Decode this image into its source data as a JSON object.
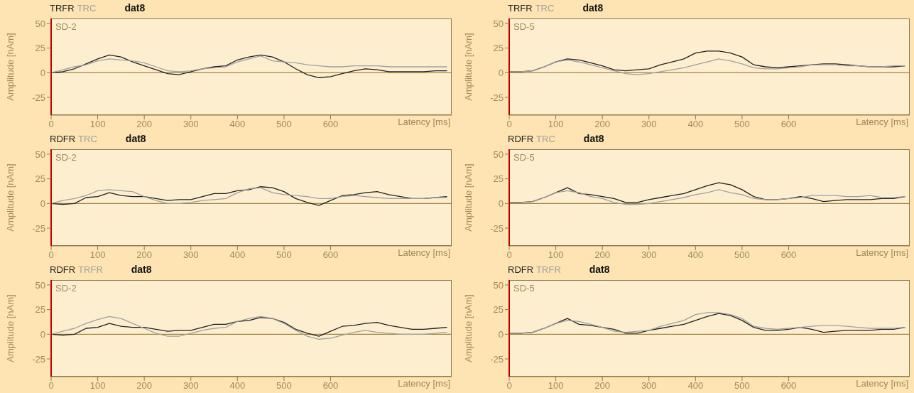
{
  "chart_data": [
    {
      "type": "line",
      "title": "dat8",
      "xlabel": "Latency [ms]",
      "ylabel": "Amplitude [nAm]",
      "annotations": [
        "SD-2"
      ],
      "legend": "top left",
      "xlim": [
        0,
        860
      ],
      "ylim": [
        -43,
        55
      ],
      "xticks": [
        0,
        100,
        200,
        300,
        400,
        500,
        600
      ],
      "yticks": [
        -25,
        0,
        25,
        50
      ],
      "ref_lines": [
        {
          "axis": "y",
          "value": 0,
          "color": "#8c6d1f"
        }
      ],
      "x": [
        0,
        25,
        50,
        75,
        100,
        125,
        150,
        175,
        200,
        225,
        250,
        275,
        300,
        325,
        350,
        375,
        400,
        425,
        450,
        475,
        500,
        525,
        550,
        575,
        600,
        625,
        650,
        675,
        700,
        725,
        750,
        775,
        800,
        825,
        850
      ],
      "series": [
        {
          "name": "TRFR",
          "color": "#202020",
          "values": [
            0,
            1,
            4,
            9,
            14,
            18,
            16,
            11,
            7,
            3,
            -1,
            -2,
            1,
            4,
            6,
            7,
            13,
            16,
            18,
            16,
            11,
            4,
            -2,
            -5,
            -4,
            -1,
            2,
            4,
            3,
            1,
            1,
            1,
            1,
            2,
            2
          ]
        },
        {
          "name": "TRC",
          "color": "#a0a0a0",
          "values": [
            0,
            3,
            6,
            8,
            12,
            14,
            13,
            12,
            10,
            6,
            2,
            1,
            2,
            4,
            5,
            6,
            11,
            14,
            17,
            12,
            11,
            10,
            8,
            7,
            6,
            6,
            7,
            7,
            7,
            6,
            6,
            6,
            6,
            6,
            6
          ]
        }
      ]
    },
    {
      "type": "line",
      "title": "dat8",
      "xlabel": "Latency [ms]",
      "ylabel": "Amplitude [nAm]",
      "annotations": [
        "SD-5"
      ],
      "legend": "top left",
      "xlim": [
        0,
        860
      ],
      "ylim": [
        -43,
        55
      ],
      "xticks": [
        0,
        100,
        200,
        300,
        400,
        500,
        600
      ],
      "yticks": [
        -25,
        0,
        25,
        50
      ],
      "ref_lines": [
        {
          "axis": "y",
          "value": 0,
          "color": "#8c6d1f"
        }
      ],
      "x": [
        0,
        25,
        50,
        75,
        100,
        125,
        150,
        175,
        200,
        225,
        250,
        275,
        300,
        325,
        350,
        375,
        400,
        425,
        450,
        475,
        500,
        525,
        550,
        575,
        600,
        625,
        650,
        675,
        700,
        725,
        750,
        775,
        800,
        825,
        850
      ],
      "series": [
        {
          "name": "TRFR",
          "color": "#202020",
          "values": [
            1,
            1,
            2,
            6,
            11,
            14,
            13,
            10,
            7,
            3,
            2,
            3,
            4,
            8,
            11,
            14,
            20,
            22,
            22,
            20,
            16,
            8,
            6,
            5,
            6,
            7,
            8,
            9,
            9,
            8,
            7,
            6,
            6,
            6,
            7
          ]
        },
        {
          "name": "TRC",
          "color": "#a0a0a0",
          "values": [
            1,
            1,
            2,
            6,
            11,
            13,
            11,
            8,
            5,
            2,
            -1,
            -2,
            -1,
            1,
            3,
            5,
            8,
            11,
            14,
            12,
            9,
            5,
            4,
            4,
            5,
            6,
            8,
            8,
            8,
            7,
            7,
            6,
            6,
            7,
            7
          ]
        }
      ]
    },
    {
      "type": "line",
      "title": "dat8",
      "xlabel": "Latency [ms]",
      "ylabel": "Amplitude [nAm]",
      "annotations": [
        "SD-2"
      ],
      "legend": "top left",
      "xlim": [
        0,
        860
      ],
      "ylim": [
        -43,
        55
      ],
      "xticks": [
        0,
        100,
        200,
        300,
        400,
        500,
        600
      ],
      "yticks": [
        -25,
        0,
        25,
        50
      ],
      "ref_lines": [
        {
          "axis": "y",
          "value": 0,
          "color": "#8c6d1f"
        }
      ],
      "x": [
        0,
        25,
        50,
        75,
        100,
        125,
        150,
        175,
        200,
        225,
        250,
        275,
        300,
        325,
        350,
        375,
        400,
        425,
        450,
        475,
        500,
        525,
        550,
        575,
        600,
        625,
        650,
        675,
        700,
        725,
        750,
        775,
        800,
        825,
        850
      ],
      "series": [
        {
          "name": "RDFR",
          "color": "#202020",
          "values": [
            0,
            -1,
            0,
            6,
            7,
            11,
            8,
            7,
            7,
            5,
            3,
            4,
            4,
            7,
            10,
            10,
            13,
            14,
            17,
            16,
            12,
            5,
            1,
            -2,
            3,
            8,
            9,
            11,
            12,
            9,
            7,
            5,
            5,
            6,
            7
          ]
        },
        {
          "name": "TRC",
          "color": "#a0a0a0",
          "values": [
            0,
            3,
            5,
            8,
            13,
            14,
            13,
            12,
            7,
            3,
            0,
            0,
            1,
            3,
            4,
            5,
            11,
            15,
            16,
            11,
            9,
            8,
            7,
            5,
            5,
            7,
            8,
            7,
            6,
            5,
            5,
            5,
            5,
            6,
            6
          ]
        }
      ]
    },
    {
      "type": "line",
      "title": "dat8",
      "xlabel": "Latency [ms]",
      "ylabel": "Amplitude [nAm]",
      "annotations": [
        "SD-5"
      ],
      "legend": "top left",
      "xlim": [
        0,
        860
      ],
      "ylim": [
        -43,
        55
      ],
      "xticks": [
        0,
        100,
        200,
        300,
        400,
        500,
        600
      ],
      "yticks": [
        -25,
        0,
        25,
        50
      ],
      "ref_lines": [
        {
          "axis": "y",
          "value": 0,
          "color": "#8c6d1f"
        }
      ],
      "x": [
        0,
        25,
        50,
        75,
        100,
        125,
        150,
        175,
        200,
        225,
        250,
        275,
        300,
        325,
        350,
        375,
        400,
        425,
        450,
        475,
        500,
        525,
        550,
        575,
        600,
        625,
        650,
        675,
        700,
        725,
        750,
        775,
        800,
        825,
        850
      ],
      "series": [
        {
          "name": "RDFR",
          "color": "#202020",
          "values": [
            1,
            1,
            2,
            6,
            11,
            16,
            10,
            9,
            7,
            5,
            1,
            1,
            4,
            6,
            8,
            10,
            14,
            18,
            21,
            19,
            14,
            7,
            4,
            4,
            5,
            7,
            5,
            2,
            3,
            4,
            4,
            4,
            5,
            5,
            7
          ]
        },
        {
          "name": "TRC",
          "color": "#a0a0a0",
          "values": [
            1,
            1,
            2,
            6,
            11,
            13,
            11,
            7,
            5,
            1,
            -1,
            -1,
            0,
            2,
            4,
            6,
            9,
            11,
            14,
            11,
            9,
            5,
            4,
            4,
            5,
            6,
            8,
            8,
            8,
            7,
            7,
            8,
            6,
            6,
            7
          ]
        }
      ]
    },
    {
      "type": "line",
      "title": "dat8",
      "xlabel": "Latency [ms]",
      "ylabel": "Amplitude [nAm]",
      "annotations": [
        "SD-2"
      ],
      "legend": "top left",
      "xlim": [
        0,
        860
      ],
      "ylim": [
        -43,
        55
      ],
      "xticks": [
        0,
        100,
        200,
        300,
        400,
        500,
        600
      ],
      "yticks": [
        -25,
        0,
        25,
        50
      ],
      "ref_lines": [
        {
          "axis": "y",
          "value": 0,
          "color": "#8c6d1f"
        }
      ],
      "x": [
        0,
        25,
        50,
        75,
        100,
        125,
        150,
        175,
        200,
        225,
        250,
        275,
        300,
        325,
        350,
        375,
        400,
        425,
        450,
        475,
        500,
        525,
        550,
        575,
        600,
        625,
        650,
        675,
        700,
        725,
        750,
        775,
        800,
        825,
        850
      ],
      "series": [
        {
          "name": "RDFR",
          "color": "#202020",
          "values": [
            0,
            -1,
            0,
            6,
            7,
            11,
            8,
            7,
            7,
            5,
            3,
            4,
            4,
            7,
            10,
            10,
            13,
            14,
            17,
            16,
            12,
            5,
            1,
            -2,
            3,
            8,
            9,
            11,
            12,
            9,
            7,
            5,
            5,
            6,
            7
          ]
        },
        {
          "name": "TRFR",
          "color": "#a0a0a0",
          "values": [
            0,
            3,
            6,
            11,
            15,
            18,
            16,
            11,
            6,
            1,
            -2,
            -2,
            1,
            4,
            6,
            7,
            13,
            16,
            18,
            16,
            11,
            4,
            -2,
            -5,
            -4,
            -1,
            2,
            4,
            2,
            1,
            0,
            0,
            0,
            1,
            2
          ]
        }
      ]
    },
    {
      "type": "line",
      "title": "dat8",
      "xlabel": "Latency [ms]",
      "ylabel": "Amplitude [nAm]",
      "annotations": [
        "SD-5"
      ],
      "legend": "top left",
      "xlim": [
        0,
        860
      ],
      "ylim": [
        -43,
        55
      ],
      "xticks": [
        0,
        100,
        200,
        300,
        400,
        500,
        600
      ],
      "yticks": [
        -25,
        0,
        25,
        50
      ],
      "ref_lines": [
        {
          "axis": "y",
          "value": 0,
          "color": "#8c6d1f"
        }
      ],
      "x": [
        0,
        25,
        50,
        75,
        100,
        125,
        150,
        175,
        200,
        225,
        250,
        275,
        300,
        325,
        350,
        375,
        400,
        425,
        450,
        475,
        500,
        525,
        550,
        575,
        600,
        625,
        650,
        675,
        700,
        725,
        750,
        775,
        800,
        825,
        850
      ],
      "series": [
        {
          "name": "RDFR",
          "color": "#202020",
          "values": [
            1,
            1,
            2,
            6,
            11,
            16,
            10,
            9,
            7,
            5,
            1,
            1,
            4,
            6,
            8,
            10,
            14,
            18,
            21,
            19,
            14,
            7,
            4,
            4,
            5,
            7,
            5,
            2,
            3,
            4,
            4,
            4,
            5,
            5,
            7
          ]
        },
        {
          "name": "TRFR",
          "color": "#a0a0a0",
          "values": [
            1,
            1,
            2,
            6,
            11,
            14,
            13,
            10,
            7,
            3,
            2,
            3,
            4,
            8,
            11,
            14,
            20,
            22,
            22,
            20,
            16,
            8,
            6,
            5,
            6,
            7,
            8,
            9,
            9,
            8,
            7,
            6,
            6,
            6,
            7
          ]
        }
      ]
    }
  ]
}
